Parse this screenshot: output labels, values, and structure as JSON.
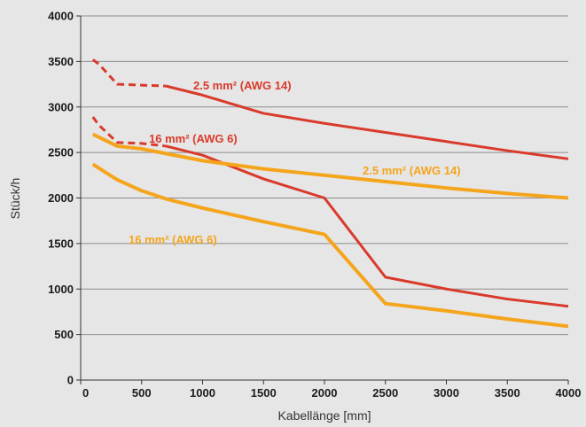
{
  "chart_data": {
    "type": "line",
    "xlabel": "Kabellänge [mm]",
    "ylabel": "Stück/h",
    "xlim": [
      0,
      4000
    ],
    "ylim": [
      0,
      4000
    ],
    "x_ticks": [
      0,
      500,
      1000,
      1500,
      2000,
      2500,
      3000,
      3500,
      4000
    ],
    "y_ticks": [
      0,
      500,
      1000,
      1500,
      2000,
      2500,
      3000,
      3500,
      4000
    ],
    "grid": "horizontal",
    "series": [
      {
        "name": "2.5 mm² (AWG 14)",
        "color": "#d93a2b",
        "dashed_until_x": 700,
        "points": [
          [
            100,
            3520
          ],
          [
            150,
            3470
          ],
          [
            300,
            3250
          ],
          [
            500,
            3240
          ],
          [
            700,
            3230
          ],
          [
            1000,
            3130
          ],
          [
            1500,
            2930
          ],
          [
            2000,
            2820
          ],
          [
            2500,
            2720
          ],
          [
            3000,
            2620
          ],
          [
            3500,
            2520
          ],
          [
            4000,
            2430
          ]
        ]
      },
      {
        "name": "16 mm² (AWG 6)",
        "color": "#d93a2b",
        "dashed_until_x": 700,
        "points": [
          [
            100,
            2890
          ],
          [
            150,
            2800
          ],
          [
            300,
            2610
          ],
          [
            500,
            2600
          ],
          [
            700,
            2570
          ],
          [
            1000,
            2470
          ],
          [
            1500,
            2210
          ],
          [
            2000,
            2000
          ],
          [
            2500,
            1130
          ],
          [
            3000,
            1000
          ],
          [
            3500,
            890
          ],
          [
            4000,
            810
          ]
        ]
      },
      {
        "name": "2.5 mm² (AWG 14)",
        "color": "#f5a51c",
        "points": [
          [
            100,
            2700
          ],
          [
            300,
            2570
          ],
          [
            500,
            2540
          ],
          [
            1000,
            2410
          ],
          [
            1500,
            2320
          ],
          [
            2000,
            2250
          ],
          [
            2500,
            2180
          ],
          [
            3000,
            2110
          ],
          [
            3500,
            2050
          ],
          [
            4000,
            2000
          ]
        ]
      },
      {
        "name": "16 mm² (AWG 6)",
        "color": "#f5a51c",
        "points": [
          [
            100,
            2370
          ],
          [
            300,
            2200
          ],
          [
            500,
            2080
          ],
          [
            700,
            1990
          ],
          [
            1000,
            1890
          ],
          [
            1500,
            1740
          ],
          [
            2000,
            1600
          ],
          [
            2500,
            840
          ],
          [
            3000,
            760
          ],
          [
            3500,
            670
          ],
          [
            4000,
            590
          ]
        ]
      }
    ]
  }
}
